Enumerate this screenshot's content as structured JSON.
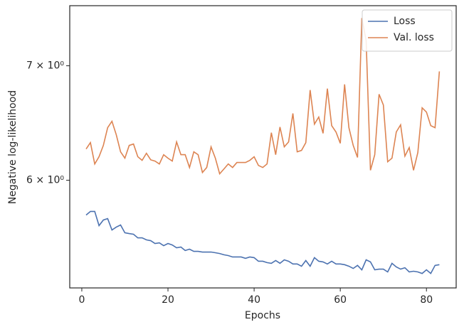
{
  "chart_data": {
    "type": "line",
    "xlabel": "Epochs",
    "ylabel": "Negative log-likelihood",
    "x": [
      1,
      2,
      3,
      4,
      5,
      6,
      7,
      8,
      9,
      10,
      11,
      12,
      13,
      14,
      15,
      16,
      17,
      18,
      19,
      20,
      21,
      22,
      23,
      24,
      25,
      26,
      27,
      28,
      29,
      30,
      31,
      32,
      33,
      34,
      35,
      36,
      37,
      38,
      39,
      40,
      41,
      42,
      43,
      44,
      45,
      46,
      47,
      48,
      49,
      50,
      51,
      52,
      53,
      54,
      55,
      56,
      57,
      58,
      59,
      60,
      61,
      62,
      63,
      64,
      65,
      66,
      67,
      68,
      69,
      70,
      71,
      72,
      73,
      74,
      75,
      76,
      77,
      78,
      79,
      80,
      81,
      82,
      83
    ],
    "series": [
      {
        "name": "Loss",
        "color": "#4c72b0",
        "values": [
          5.725,
          5.753,
          5.753,
          5.644,
          5.687,
          5.698,
          5.611,
          5.633,
          5.649,
          5.59,
          5.584,
          5.579,
          5.552,
          5.552,
          5.537,
          5.531,
          5.51,
          5.515,
          5.494,
          5.51,
          5.499,
          5.478,
          5.484,
          5.458,
          5.468,
          5.452,
          5.452,
          5.447,
          5.447,
          5.447,
          5.442,
          5.436,
          5.427,
          5.421,
          5.411,
          5.411,
          5.411,
          5.401,
          5.411,
          5.406,
          5.38,
          5.38,
          5.37,
          5.365,
          5.385,
          5.365,
          5.39,
          5.38,
          5.36,
          5.36,
          5.344,
          5.385,
          5.344,
          5.406,
          5.38,
          5.375,
          5.36,
          5.38,
          5.36,
          5.36,
          5.355,
          5.344,
          5.328,
          5.35,
          5.318,
          5.39,
          5.375,
          5.318,
          5.323,
          5.323,
          5.303,
          5.365,
          5.339,
          5.323,
          5.333,
          5.303,
          5.308,
          5.303,
          5.292,
          5.318,
          5.292,
          5.35,
          5.355
        ]
      },
      {
        "name": "Val. loss",
        "color": "#dd8452",
        "values": [
          6.258,
          6.312,
          6.133,
          6.193,
          6.288,
          6.44,
          6.496,
          6.379,
          6.234,
          6.181,
          6.288,
          6.3,
          6.193,
          6.163,
          6.222,
          6.167,
          6.157,
          6.133,
          6.21,
          6.181,
          6.157,
          6.318,
          6.21,
          6.21,
          6.104,
          6.234,
          6.21,
          6.063,
          6.104,
          6.276,
          6.181,
          6.052,
          6.092,
          6.133,
          6.104,
          6.145,
          6.145,
          6.145,
          6.163,
          6.193,
          6.121,
          6.104,
          6.133,
          6.397,
          6.21,
          6.446,
          6.276,
          6.318,
          6.565,
          6.234,
          6.246,
          6.312,
          6.775,
          6.471,
          6.533,
          6.391,
          6.788,
          6.458,
          6.403,
          6.306,
          6.827,
          6.44,
          6.288,
          6.187,
          7.465,
          7.243,
          6.081,
          6.21,
          6.737,
          6.64,
          6.151,
          6.181,
          6.403,
          6.465,
          6.198,
          6.27,
          6.081,
          6.228,
          6.615,
          6.577,
          6.458,
          6.44,
          6.947
        ]
      }
    ],
    "xlim": [
      -2.8,
      86.9
    ],
    "xticks": [
      0,
      20,
      40,
      60,
      80
    ],
    "ylim": [
      5.19,
      7.59
    ],
    "log_y": true,
    "yticks": [
      {
        "value": 6,
        "label": "6 × 10⁰"
      },
      {
        "value": 7,
        "label": "7 × 10⁰"
      }
    ],
    "legend": "upper right"
  }
}
